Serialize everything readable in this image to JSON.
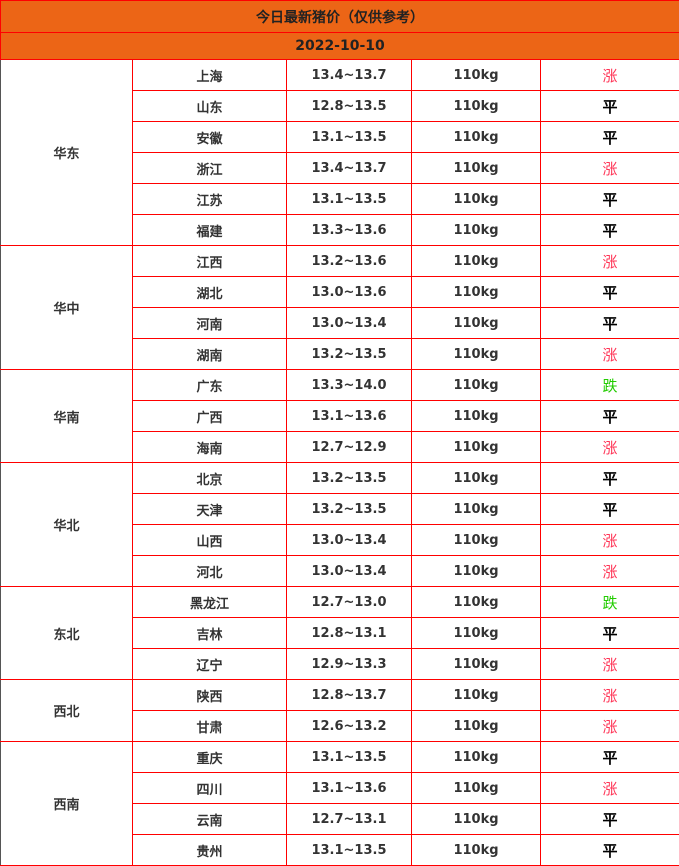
{
  "title": "今日最新猪价（仅供参考）",
  "date": "2022-10-10",
  "colors": {
    "header_bg": "#ec6516",
    "border": "#ff0000",
    "rise": "#ff3355",
    "fall": "#22cc00",
    "flat": "#000000"
  },
  "regions": [
    {
      "name": "华东",
      "rows": [
        {
          "province": "上海",
          "price": "13.4~13.7",
          "weight": "110kg",
          "trend": "涨"
        },
        {
          "province": "山东",
          "price": "12.8~13.5",
          "weight": "110kg",
          "trend": "平"
        },
        {
          "province": "安徽",
          "price": "13.1~13.5",
          "weight": "110kg",
          "trend": "平"
        },
        {
          "province": "浙江",
          "price": "13.4~13.7",
          "weight": "110kg",
          "trend": "涨"
        },
        {
          "province": "江苏",
          "price": "13.1~13.5",
          "weight": "110kg",
          "trend": "平"
        },
        {
          "province": "福建",
          "price": "13.3~13.6",
          "weight": "110kg",
          "trend": "平"
        }
      ]
    },
    {
      "name": "华中",
      "rows": [
        {
          "province": "江西",
          "price": "13.2~13.6",
          "weight": "110kg",
          "trend": "涨"
        },
        {
          "province": "湖北",
          "price": "13.0~13.6",
          "weight": "110kg",
          "trend": "平"
        },
        {
          "province": "河南",
          "price": "13.0~13.4",
          "weight": "110kg",
          "trend": "平"
        },
        {
          "province": "湖南",
          "price": "13.2~13.5",
          "weight": "110kg",
          "trend": "涨"
        }
      ]
    },
    {
      "name": "华南",
      "rows": [
        {
          "province": "广东",
          "price": "13.3~14.0",
          "weight": "110kg",
          "trend": "跌"
        },
        {
          "province": "广西",
          "price": "13.1~13.6",
          "weight": "110kg",
          "trend": "平"
        },
        {
          "province": "海南",
          "price": "12.7~12.9",
          "weight": "110kg",
          "trend": "涨"
        }
      ]
    },
    {
      "name": "华北",
      "rows": [
        {
          "province": "北京",
          "price": "13.2~13.5",
          "weight": "110kg",
          "trend": "平"
        },
        {
          "province": "天津",
          "price": "13.2~13.5",
          "weight": "110kg",
          "trend": "平"
        },
        {
          "province": "山西",
          "price": "13.0~13.4",
          "weight": "110kg",
          "trend": "涨"
        },
        {
          "province": "河北",
          "price": "13.0~13.4",
          "weight": "110kg",
          "trend": "涨"
        }
      ]
    },
    {
      "name": "东北",
      "rows": [
        {
          "province": "黑龙江",
          "price": "12.7~13.0",
          "weight": "110kg",
          "trend": "跌"
        },
        {
          "province": "吉林",
          "price": "12.8~13.1",
          "weight": "110kg",
          "trend": "平"
        },
        {
          "province": "辽宁",
          "price": "12.9~13.3",
          "weight": "110kg",
          "trend": "涨"
        }
      ]
    },
    {
      "name": "西北",
      "rows": [
        {
          "province": "陕西",
          "price": "12.8~13.7",
          "weight": "110kg",
          "trend": "涨"
        },
        {
          "province": "甘肃",
          "price": "12.6~13.2",
          "weight": "110kg",
          "trend": "涨"
        }
      ]
    },
    {
      "name": "西南",
      "rows": [
        {
          "province": "重庆",
          "price": "13.1~13.5",
          "weight": "110kg",
          "trend": "平"
        },
        {
          "province": "四川",
          "price": "13.1~13.6",
          "weight": "110kg",
          "trend": "涨"
        },
        {
          "province": "云南",
          "price": "12.7~13.1",
          "weight": "110kg",
          "trend": "平"
        },
        {
          "province": "贵州",
          "price": "13.1~13.5",
          "weight": "110kg",
          "trend": "平"
        }
      ]
    }
  ]
}
